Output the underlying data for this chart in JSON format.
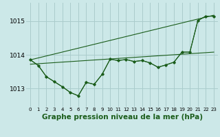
{
  "background_color": "#cce8e8",
  "grid_color": "#aacccc",
  "line_color": "#1a5c1a",
  "xlabel": "Graphe pression niveau de la mer (hPa)",
  "xlabel_fontsize": 7.5,
  "ylabel_values": [
    1013,
    1014,
    1015
  ],
  "ylabel_fontsize": 6.5,
  "xtick_fontsize": 5.0,
  "xlim": [
    -0.5,
    23.5
  ],
  "ylim": [
    1012.45,
    1015.55
  ],
  "x": [
    0,
    1,
    2,
    3,
    4,
    5,
    6,
    7,
    8,
    9,
    10,
    11,
    12,
    13,
    14,
    15,
    16,
    17,
    18,
    19,
    20,
    21,
    22,
    23
  ],
  "series1": [
    1013.85,
    1013.68,
    1013.35,
    1013.2,
    1013.05,
    1012.88,
    1012.78,
    1013.18,
    1013.12,
    1013.42,
    1013.87,
    1013.83,
    1013.86,
    1013.8,
    1013.83,
    1013.76,
    1013.63,
    1013.7,
    1013.78,
    1014.08,
    1014.08,
    1015.02,
    1015.15,
    1015.15
  ],
  "series2_x": [
    0,
    23
  ],
  "series2_y": [
    1013.85,
    1015.18
  ],
  "series3_x": [
    0,
    23
  ],
  "series3_y": [
    1013.72,
    1014.08
  ],
  "series4": [
    1013.85,
    1013.68,
    1013.35,
    1013.2,
    1013.05,
    1012.88,
    1012.78,
    1013.18,
    1013.12,
    1013.42,
    1013.87,
    1013.83,
    1013.86,
    1013.8,
    1013.83,
    1013.76,
    1013.63,
    1013.7,
    1013.78,
    1014.08,
    1014.08,
    1015.02,
    1015.15,
    1015.15
  ]
}
